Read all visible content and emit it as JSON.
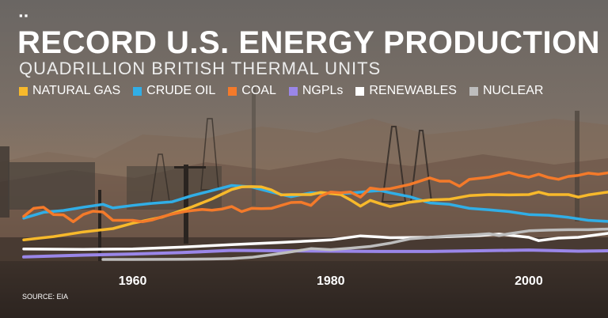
{
  "header": {
    "logo": "▪▪",
    "title": "RECORD U.S. ENERGY PRODUCTION",
    "subtitle": "QUADRILLION BRITISH THERMAL UNITS",
    "source": "SOURCE: EIA"
  },
  "chart_data": {
    "type": "line",
    "title": "RECORD U.S. ENERGY PRODUCTION",
    "subtitle": "QUADRILLION BRITISH THERMAL UNITS",
    "xlabel": "",
    "ylabel": "",
    "xlim": [
      1949,
      2008
    ],
    "ylim": [
      0,
      30
    ],
    "x_ticks": [
      1960,
      1980,
      2000
    ],
    "grid": false,
    "legend_position": "top",
    "series": [
      {
        "name": "NATURAL GAS",
        "color": "#f7b92b",
        "points": [
          [
            1949,
            5.4
          ],
          [
            1952,
            6.3
          ],
          [
            1955,
            7.6
          ],
          [
            1958,
            8.5
          ],
          [
            1960,
            10.0
          ],
          [
            1963,
            11.7
          ],
          [
            1966,
            14.5
          ],
          [
            1968,
            16.7
          ],
          [
            1970,
            19.3
          ],
          [
            1971,
            20.0
          ],
          [
            1972,
            20.1
          ],
          [
            1973,
            20.0
          ],
          [
            1974,
            19.2
          ],
          [
            1975,
            17.8
          ],
          [
            1976,
            17.9
          ],
          [
            1977,
            17.9
          ],
          [
            1978,
            17.9
          ],
          [
            1979,
            18.5
          ],
          [
            1980,
            18.2
          ],
          [
            1981,
            17.9
          ],
          [
            1982,
            16.4
          ],
          [
            1983,
            14.7
          ],
          [
            1984,
            16.3
          ],
          [
            1985,
            15.4
          ],
          [
            1986,
            14.6
          ],
          [
            1988,
            15.8
          ],
          [
            1990,
            16.4
          ],
          [
            1992,
            16.6
          ],
          [
            1994,
            17.6
          ],
          [
            1996,
            17.9
          ],
          [
            1998,
            17.8
          ],
          [
            2000,
            17.9
          ],
          [
            2001,
            18.6
          ],
          [
            2002,
            17.9
          ],
          [
            2004,
            17.9
          ],
          [
            2005,
            17.2
          ],
          [
            2006,
            17.8
          ],
          [
            2008,
            18.6
          ]
        ]
      },
      {
        "name": "CRUDE OIL",
        "color": "#31aee6",
        "points": [
          [
            1949,
            11.4
          ],
          [
            1951,
            13.0
          ],
          [
            1953,
            13.5
          ],
          [
            1955,
            14.4
          ],
          [
            1957,
            15.2
          ],
          [
            1958,
            14.2
          ],
          [
            1960,
            14.9
          ],
          [
            1962,
            15.5
          ],
          [
            1964,
            15.9
          ],
          [
            1966,
            17.6
          ],
          [
            1968,
            19.0
          ],
          [
            1970,
            20.4
          ],
          [
            1972,
            20.0
          ],
          [
            1974,
            18.6
          ],
          [
            1976,
            17.3
          ],
          [
            1978,
            18.4
          ],
          [
            1980,
            18.2
          ],
          [
            1982,
            18.3
          ],
          [
            1984,
            18.8
          ],
          [
            1985,
            19.0
          ],
          [
            1986,
            18.4
          ],
          [
            1988,
            17.3
          ],
          [
            1990,
            15.6
          ],
          [
            1992,
            15.2
          ],
          [
            1994,
            14.1
          ],
          [
            1996,
            13.7
          ],
          [
            1998,
            13.2
          ],
          [
            2000,
            12.4
          ],
          [
            2002,
            12.2
          ],
          [
            2004,
            11.6
          ],
          [
            2006,
            10.8
          ],
          [
            2008,
            10.5
          ]
        ]
      },
      {
        "name": "COAL",
        "color": "#f47a2a",
        "points": [
          [
            1949,
            11.9
          ],
          [
            1950,
            14.1
          ],
          [
            1951,
            14.4
          ],
          [
            1952,
            12.4
          ],
          [
            1953,
            12.3
          ],
          [
            1954,
            10.4
          ],
          [
            1955,
            12.4
          ],
          [
            1956,
            13.3
          ],
          [
            1957,
            13.1
          ],
          [
            1958,
            10.8
          ],
          [
            1959,
            10.8
          ],
          [
            1960,
            10.8
          ],
          [
            1961,
            10.4
          ],
          [
            1962,
            10.9
          ],
          [
            1963,
            11.8
          ],
          [
            1964,
            12.5
          ],
          [
            1965,
            13.1
          ],
          [
            1966,
            13.5
          ],
          [
            1967,
            13.8
          ],
          [
            1968,
            13.6
          ],
          [
            1969,
            13.9
          ],
          [
            1970,
            14.6
          ],
          [
            1971,
            13.2
          ],
          [
            1972,
            14.1
          ],
          [
            1973,
            14.0
          ],
          [
            1974,
            14.1
          ],
          [
            1975,
            14.9
          ],
          [
            1976,
            15.7
          ],
          [
            1977,
            15.8
          ],
          [
            1978,
            14.9
          ],
          [
            1979,
            17.5
          ],
          [
            1980,
            18.6
          ],
          [
            1981,
            18.4
          ],
          [
            1982,
            18.6
          ],
          [
            1983,
            17.2
          ],
          [
            1984,
            19.7
          ],
          [
            1985,
            19.3
          ],
          [
            1986,
            19.5
          ],
          [
            1988,
            20.7
          ],
          [
            1990,
            22.5
          ],
          [
            1991,
            21.6
          ],
          [
            1992,
            21.6
          ],
          [
            1993,
            20.2
          ],
          [
            1994,
            22.1
          ],
          [
            1996,
            22.7
          ],
          [
            1998,
            24.0
          ],
          [
            1999,
            23.2
          ],
          [
            2000,
            22.7
          ],
          [
            2001,
            23.5
          ],
          [
            2002,
            22.6
          ],
          [
            2003,
            22.1
          ],
          [
            2004,
            22.9
          ],
          [
            2005,
            23.2
          ],
          [
            2006,
            23.8
          ],
          [
            2007,
            23.5
          ],
          [
            2008,
            23.9
          ]
        ]
      },
      {
        "name": "NGPLs",
        "color": "#9a86e8",
        "points": [
          [
            1949,
            0.7
          ],
          [
            1955,
            1.2
          ],
          [
            1960,
            1.5
          ],
          [
            1965,
            1.9
          ],
          [
            1970,
            2.5
          ],
          [
            1975,
            2.4
          ],
          [
            1980,
            2.3
          ],
          [
            1985,
            2.2
          ],
          [
            1990,
            2.2
          ],
          [
            1995,
            2.4
          ],
          [
            2000,
            2.6
          ],
          [
            2005,
            2.3
          ],
          [
            2008,
            2.4
          ]
        ]
      },
      {
        "name": "RENEWABLES",
        "color": "#ffffff",
        "points": [
          [
            1949,
            2.9
          ],
          [
            1955,
            2.8
          ],
          [
            1960,
            2.9
          ],
          [
            1965,
            3.4
          ],
          [
            1970,
            4.1
          ],
          [
            1975,
            4.7
          ],
          [
            1980,
            5.4
          ],
          [
            1983,
            6.5
          ],
          [
            1985,
            6.2
          ],
          [
            1986,
            6.0
          ],
          [
            1990,
            6.1
          ],
          [
            1995,
            6.6
          ],
          [
            1997,
            7.0
          ],
          [
            2000,
            6.1
          ],
          [
            2001,
            5.2
          ],
          [
            2003,
            5.9
          ],
          [
            2005,
            6.1
          ],
          [
            2008,
            7.2
          ]
        ]
      },
      {
        "name": "NUCLEAR",
        "color": "#bdbdbd",
        "points": [
          [
            1957,
            0.0
          ],
          [
            1960,
            0.0
          ],
          [
            1965,
            0.04
          ],
          [
            1968,
            0.14
          ],
          [
            1970,
            0.24
          ],
          [
            1972,
            0.6
          ],
          [
            1974,
            1.3
          ],
          [
            1976,
            2.1
          ],
          [
            1978,
            3.0
          ],
          [
            1980,
            2.7
          ],
          [
            1982,
            3.1
          ],
          [
            1984,
            3.6
          ],
          [
            1986,
            4.5
          ],
          [
            1988,
            5.7
          ],
          [
            1990,
            6.1
          ],
          [
            1992,
            6.5
          ],
          [
            1994,
            6.7
          ],
          [
            1996,
            7.1
          ],
          [
            1997,
            6.6
          ],
          [
            1998,
            7.1
          ],
          [
            2000,
            7.9
          ],
          [
            2002,
            8.1
          ],
          [
            2004,
            8.2
          ],
          [
            2006,
            8.2
          ],
          [
            2008,
            8.4
          ]
        ]
      }
    ]
  }
}
